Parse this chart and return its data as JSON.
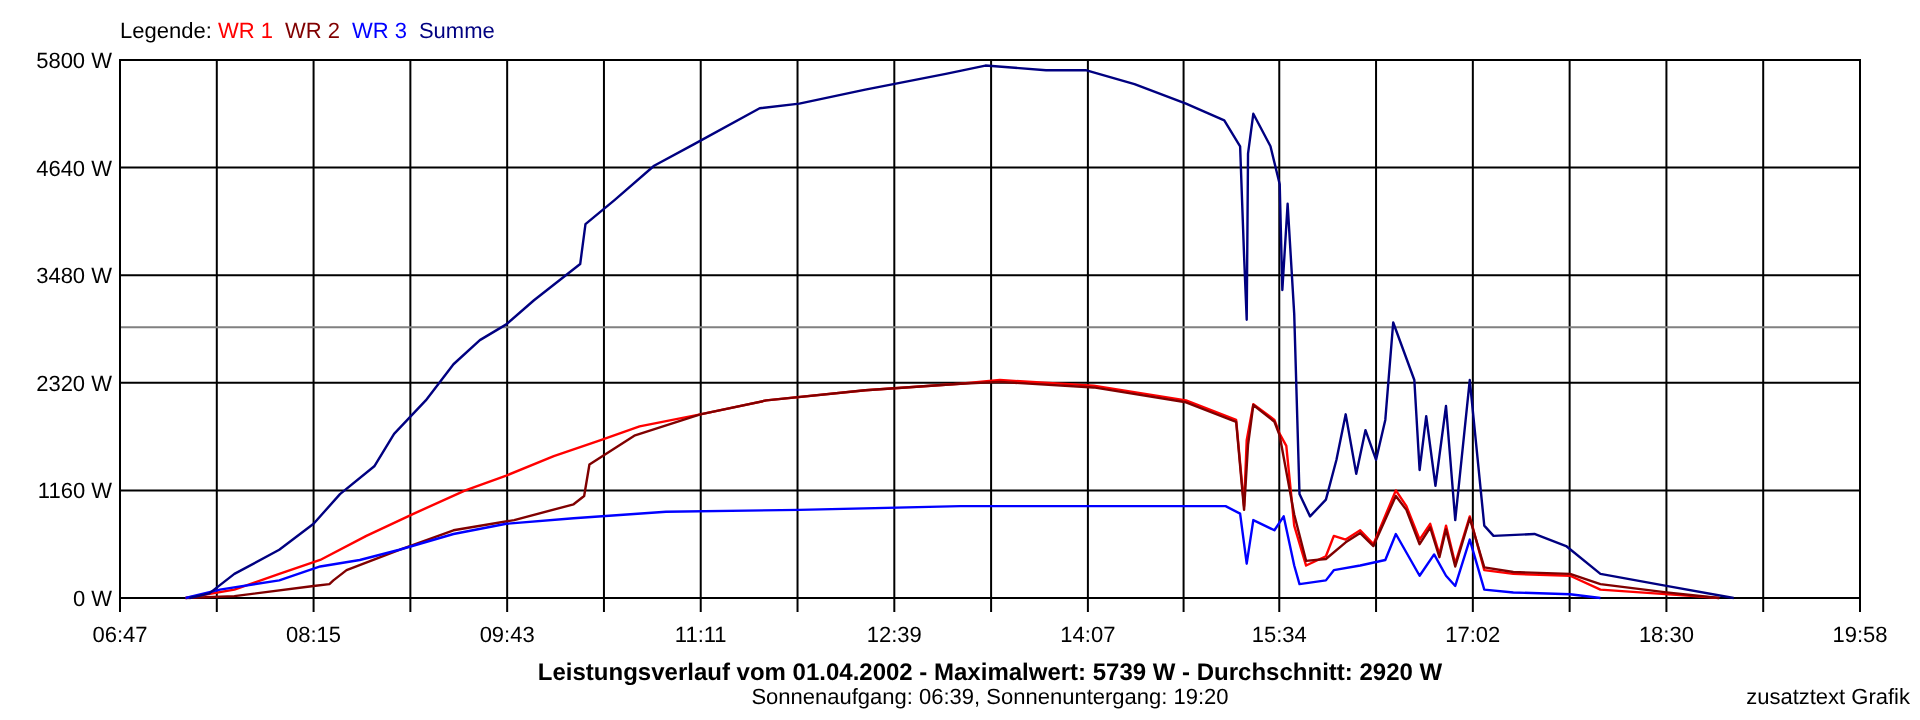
{
  "chart_data": {
    "type": "line",
    "title": "Leistungsverlauf vom 01.04.2002 - Maximalwert: 5739 W - Durchschnitt: 2920 W",
    "subtitle": "Sonnenaufgang: 06:39, Sonnenuntergang: 19:20",
    "legend_title": "Legende:",
    "annotations": [
      "zusatztext Grafik"
    ],
    "legend": "top left",
    "grid": true,
    "line_style": "solid",
    "xlim": [
      6.7833,
      19.9667
    ],
    "xticks": [
      {
        "value": 6.7833,
        "label": "06:47"
      },
      {
        "value": 7.5167,
        "label": null
      },
      {
        "value": 8.25,
        "label": "08:15"
      },
      {
        "value": 8.9833,
        "label": null
      },
      {
        "value": 9.7167,
        "label": "09:43"
      },
      {
        "value": 10.45,
        "label": null
      },
      {
        "value": 11.1833,
        "label": "11:11"
      },
      {
        "value": 11.9167,
        "label": null
      },
      {
        "value": 12.65,
        "label": "12:39"
      },
      {
        "value": 13.3833,
        "label": null
      },
      {
        "value": 14.1167,
        "label": "14:07"
      },
      {
        "value": 14.8417,
        "label": null
      },
      {
        "value": 15.5667,
        "label": "15:34"
      },
      {
        "value": 16.3,
        "label": null
      },
      {
        "value": 17.0333,
        "label": "17:02"
      },
      {
        "value": 17.7667,
        "label": null
      },
      {
        "value": 18.5,
        "label": "18:30"
      },
      {
        "value": 19.2333,
        "label": null
      },
      {
        "value": 19.9667,
        "label": "19:58"
      }
    ],
    "ylim": [
      0,
      5800
    ],
    "yticks": [
      {
        "value": 0,
        "label": "0 W"
      },
      {
        "value": 1160,
        "label": "1160 W"
      },
      {
        "value": 2320,
        "label": "2320 W"
      },
      {
        "value": 3480,
        "label": "3480 W"
      },
      {
        "value": 4640,
        "label": "4640 W"
      },
      {
        "value": 5800,
        "label": "5800 W"
      }
    ],
    "ref_lines": [
      {
        "axis": "y",
        "value": 2920,
        "color": "#808080"
      }
    ],
    "series": [
      {
        "name": "WR 1",
        "color": "#ff0000",
        "x": [
          7.28,
          7.65,
          7.99,
          8.3,
          8.65,
          9.01,
          9.4,
          9.71,
          10.07,
          10.42,
          10.72,
          11.18,
          11.68,
          12.43,
          13.15,
          13.45,
          14.16,
          14.86,
          15.24,
          15.3,
          15.32,
          15.37,
          15.53,
          15.57,
          15.62,
          15.68,
          15.77,
          15.92,
          15.98,
          16.07,
          16.18,
          16.28,
          16.45,
          16.53,
          16.63,
          16.71,
          16.78,
          16.83,
          16.9,
          17.01,
          17.12,
          17.34,
          17.77,
          18.0,
          18.71,
          18.9
        ],
        "values": [
          0,
          90,
          260,
          410,
          670,
          910,
          1160,
          1320,
          1530,
          1700,
          1850,
          1980,
          2130,
          2240,
          2310,
          2350,
          2290,
          2130,
          1920,
          990,
          1700,
          2090,
          1920,
          1770,
          1640,
          780,
          350,
          450,
          670,
          630,
          730,
          580,
          1160,
          990,
          630,
          800,
          470,
          780,
          370,
          880,
          300,
          260,
          240,
          90,
          20,
          0
        ]
      },
      {
        "name": "WR 2",
        "color": "#800000",
        "x": [
          7.28,
          7.65,
          8.25,
          8.37,
          8.4,
          8.5,
          8.9,
          9.31,
          9.77,
          10.22,
          10.3,
          10.34,
          10.68,
          11.18,
          11.68,
          12.43,
          13.15,
          13.45,
          14.16,
          14.86,
          15.24,
          15.3,
          15.33,
          15.37,
          15.53,
          15.57,
          15.68,
          15.77,
          15.92,
          16.07,
          16.18,
          16.28,
          16.45,
          16.53,
          16.63,
          16.71,
          16.78,
          16.83,
          16.9,
          17.01,
          17.12,
          17.34,
          17.77,
          18.0,
          18.5,
          18.9
        ],
        "values": [
          0,
          20,
          130,
          150,
          190,
          300,
          520,
          730,
          840,
          1010,
          1100,
          1440,
          1750,
          1980,
          2130,
          2240,
          2310,
          2330,
          2270,
          2110,
          1900,
          950,
          1650,
          2080,
          1900,
          1750,
          900,
          400,
          420,
          600,
          700,
          560,
          1100,
          950,
          580,
          760,
          440,
          740,
          340,
          860,
          330,
          280,
          260,
          150,
          60,
          0
        ]
      },
      {
        "name": "WR 3",
        "color": "#0000ff",
        "x": [
          7.28,
          7.54,
          7.99,
          8.3,
          8.6,
          8.9,
          9.31,
          9.71,
          10.22,
          10.92,
          11.93,
          13.15,
          15.16,
          15.27,
          15.32,
          15.37,
          15.53,
          15.6,
          15.68,
          15.72,
          15.92,
          15.98,
          16.18,
          16.37,
          16.45,
          16.63,
          16.74,
          16.83,
          16.9,
          17.01,
          17.12,
          17.34,
          17.77,
          18.0
        ],
        "values": [
          0,
          90,
          190,
          340,
          410,
          520,
          690,
          800,
          860,
          930,
          950,
          990,
          990,
          910,
          370,
          840,
          730,
          880,
          350,
          150,
          190,
          300,
          350,
          410,
          690,
          240,
          470,
          240,
          130,
          630,
          90,
          60,
          40,
          0
        ]
      },
      {
        "name": "Summe",
        "color": "#000080",
        "x": [
          7.31,
          7.46,
          7.65,
          7.99,
          8.25,
          8.45,
          8.71,
          8.86,
          9.1,
          9.31,
          9.51,
          9.71,
          9.92,
          10.27,
          10.31,
          10.53,
          10.83,
          11.13,
          11.63,
          11.93,
          12.43,
          13.04,
          13.34,
          13.8,
          14.1,
          14.47,
          14.86,
          15.15,
          15.27,
          15.3,
          15.32,
          15.33,
          15.37,
          15.5,
          15.57,
          15.59,
          15.63,
          15.68,
          15.72,
          15.8,
          15.92,
          16.0,
          16.07,
          16.15,
          16.22,
          16.3,
          16.37,
          16.43,
          16.59,
          16.63,
          16.68,
          16.75,
          16.83,
          16.9,
          17.01,
          17.12,
          17.19,
          17.5,
          17.74,
          18.0,
          18.5,
          19.01
        ],
        "values": [
          0,
          50,
          260,
          520,
          800,
          1120,
          1420,
          1770,
          2130,
          2520,
          2780,
          2950,
          3210,
          3600,
          4030,
          4290,
          4660,
          4890,
          5280,
          5330,
          5480,
          5650,
          5740,
          5690,
          5690,
          5540,
          5330,
          5150,
          4870,
          3690,
          3000,
          4790,
          5220,
          4870,
          4460,
          3320,
          4250,
          3060,
          1120,
          880,
          1060,
          1490,
          1980,
          1340,
          1810,
          1490,
          1920,
          2970,
          2350,
          1380,
          1960,
          1210,
          2070,
          840,
          2350,
          780,
          670,
          690,
          560,
          260,
          130,
          0
        ]
      }
    ]
  }
}
